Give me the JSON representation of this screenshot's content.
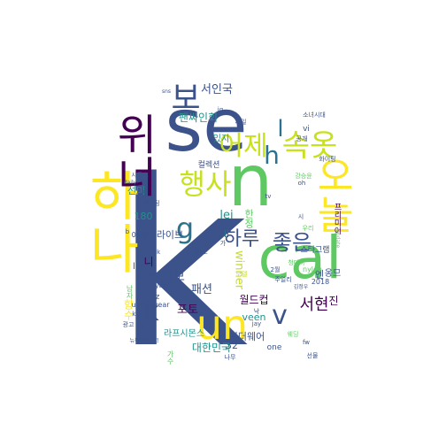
{
  "words": [
    {
      "text": "k",
      "size": 260,
      "color": "#3b528b",
      "orientation": "horizontal"
    },
    {
      "text": "se",
      "size": 82,
      "color": "#3b528b",
      "orientation": "horizontal"
    },
    {
      "text": "n",
      "size": 80,
      "color": "#5ec962",
      "orientation": "horizontal"
    },
    {
      "text": "cal",
      "size": 66,
      "color": "#5ec962",
      "orientation": "horizontal"
    },
    {
      "text": "하나",
      "size": 60,
      "color": "#fde725",
      "orientation": "vertical"
    },
    {
      "text": "위너",
      "size": 48,
      "color": "#440154",
      "orientation": "vertical"
    },
    {
      "text": "오늘",
      "size": 44,
      "color": "#fde725",
      "orientation": "vertical"
    },
    {
      "text": "un",
      "size": 46,
      "color": "#fde725",
      "orientation": "horizontal"
    },
    {
      "text": "보",
      "size": 36,
      "color": "#3b528b",
      "orientation": "horizontal"
    },
    {
      "text": "속옷",
      "size": 34,
      "color": "#c8e020",
      "orientation": "horizontal"
    },
    {
      "text": "행사",
      "size": 32,
      "color": "#c8e020",
      "orientation": "horizontal"
    },
    {
      "text": "어제",
      "size": 30,
      "color": "#c8e020",
      "orientation": "horizontal"
    },
    {
      "text": "g",
      "size": 32,
      "color": "#2c728e",
      "orientation": "horizontal"
    },
    {
      "text": "v",
      "size": 30,
      "color": "#3b528b",
      "orientation": "horizontal"
    },
    {
      "text": "h",
      "size": 28,
      "color": "#2c728e",
      "orientation": "horizontal"
    },
    {
      "text": "k",
      "size": 30,
      "color": "#3b528b",
      "orientation": "horizontal"
    },
    {
      "text": "하루",
      "size": 22,
      "color": "#3b528b",
      "orientation": "horizontal"
    },
    {
      "text": "좋은",
      "size": 24,
      "color": "#3b528b",
      "orientation": "horizontal"
    },
    {
      "text": "서현",
      "size": 18,
      "color": "#440154",
      "orientation": "horizontal"
    },
    {
      "text": "l",
      "size": 26,
      "color": "#2c728e",
      "orientation": "horizontal"
    },
    {
      "text": "서인국",
      "size": 13,
      "color": "#3b528b",
      "orientation": "horizontal"
    },
    {
      "text": "팬싸인회",
      "size": 12,
      "color": "#21918c",
      "orientation": "horizontal"
    },
    {
      "text": "화보",
      "size": 14,
      "color": "#3b528b",
      "orientation": "horizontal"
    },
    {
      "text": "패션",
      "size": 13,
      "color": "#3b528b",
      "orientation": "horizontal"
    },
    {
      "text": "포토",
      "size": 13,
      "color": "#440154",
      "orientation": "horizontal"
    },
    {
      "text": "대한민국",
      "size": 12,
      "color": "#21918c",
      "orientation": "horizontal"
    },
    {
      "text": "winner",
      "size": 13,
      "color": "#c8e020",
      "orientation": "vertical"
    },
    {
      "text": "월드컵",
      "size": 12,
      "color": "#440154",
      "orientation": "horizontal"
    },
    {
      "text": "veen",
      "size": 11,
      "color": "#21918c",
      "orientation": "horizontal"
    },
    {
      "text": "언더웨어",
      "size": 11,
      "color": "#3b528b",
      "orientation": "horizontal"
    },
    {
      "text": "라프시몬스",
      "size": 10,
      "color": "#21918c",
      "orientation": "horizontal"
    },
    {
      "text": "라이브",
      "size": 11,
      "color": "#3b528b",
      "orientation": "horizontal"
    },
    {
      "text": "한정",
      "size": 11,
      "color": "#5ec962",
      "orientation": "vertical"
    },
    {
      "text": "엔",
      "size": 11,
      "color": "#3b528b",
      "orientation": "horizontal"
    },
    {
      "text": "옹므",
      "size": 10,
      "color": "#3b528b",
      "orientation": "horizontal"
    },
    {
      "text": "진",
      "size": 12,
      "color": "#440154",
      "orientation": "horizontal"
    },
    {
      "text": "향수",
      "size": 12,
      "color": "#fde725",
      "orientation": "vertical"
    },
    {
      "text": "32",
      "size": 11,
      "color": "#3b528b",
      "orientation": "horizontal"
    },
    {
      "text": "one",
      "size": 9,
      "color": "#3b528b",
      "orientation": "horizontal"
    },
    {
      "text": "lei",
      "size": 13,
      "color": "#21918c",
      "orientation": "horizontal"
    },
    {
      "text": "li",
      "size": 11,
      "color": "#2c728e",
      "orientation": "horizontal"
    },
    {
      "text": "live",
      "size": 10,
      "color": "#3b528b",
      "orientation": "horizontal"
    },
    {
      "text": "stag",
      "size": 9,
      "color": "#3b528b",
      "orientation": "horizontal"
    },
    {
      "text": "180",
      "size": 11,
      "color": "#21918c",
      "orientation": "horizontal"
    },
    {
      "text": "w",
      "size": 10,
      "color": "#3b528b",
      "orientation": "horizontal"
    },
    {
      "text": "니",
      "size": 12,
      "color": "#440154",
      "orientation": "horizontal"
    },
    {
      "text": "선미",
      "size": 11,
      "color": "#21918c",
      "orientation": "horizontal"
    },
    {
      "text": "있지",
      "size": 10,
      "color": "#21918c",
      "orientation": "horizontal"
    },
    {
      "text": "컬렉션",
      "size": 9,
      "color": "#3b528b",
      "orientation": "horizontal"
    },
    {
      "text": "아레나",
      "size": 9,
      "color": "#3b528b",
      "orientation": "horizontal"
    },
    {
      "text": "스타그램",
      "size": 9,
      "color": "#3b528b",
      "orientation": "horizontal"
    },
    {
      "text": "프리미어",
      "size": 9,
      "color": "#440154",
      "orientation": "vertical"
    },
    {
      "text": "nylon",
      "size": 8,
      "color": "#5ec962",
      "orientation": "horizontal"
    },
    {
      "text": "2018",
      "size": 8,
      "color": "#3b528b",
      "orientation": "horizontal"
    },
    {
      "text": "underwear",
      "size": 8,
      "color": "#3b528b",
      "orientation": "horizontal"
    },
    {
      "text": "korea",
      "size": 7,
      "color": "#3b528b",
      "orientation": "horizontal"
    },
    {
      "text": "시몬스",
      "size": 7,
      "color": "#3b528b",
      "orientation": "horizontal"
    },
    {
      "text": "세일",
      "size": 7,
      "color": "#3b528b",
      "orientation": "horizontal"
    },
    {
      "text": "강승윤",
      "size": 7,
      "color": "#5ec962",
      "orientation": "horizontal"
    },
    {
      "text": "소녀시대",
      "size": 7,
      "color": "#3b528b",
      "orientation": "horizontal"
    },
    {
      "text": "주얼리",
      "size": 7,
      "color": "#3b528b",
      "orientation": "horizontal"
    },
    {
      "text": "시계",
      "size": 7,
      "color": "#3b528b",
      "orientation": "horizontal"
    },
    {
      "text": "tv",
      "size": 7,
      "color": "#3b528b",
      "orientation": "horizontal"
    },
    {
      "text": "uk",
      "size": 7,
      "color": "#3b528b",
      "orientation": "horizontal"
    },
    {
      "text": "oh",
      "size": 7,
      "color": "#3b528b",
      "orientation": "horizontal"
    },
    {
      "text": "jay",
      "size": 7,
      "color": "#3b528b",
      "orientation": "horizontal"
    },
    {
      "text": "fw",
      "size": 7,
      "color": "#3b528b",
      "orientation": "horizontal"
    },
    {
      "text": "2월호",
      "size": 7,
      "color": "#3b528b",
      "orientation": "horizontal"
    },
    {
      "text": "웨딩",
      "size": 7,
      "color": "#5ec962",
      "orientation": "horizontal"
    },
    {
      "text": "청다하",
      "size": 7,
      "color": "#5ec962",
      "orientation": "horizontal"
    },
    {
      "text": "daily",
      "size": 6,
      "color": "#3b528b",
      "orientation": "horizontal"
    },
    {
      "text": "p",
      "size": 7,
      "color": "#3b528b",
      "orientation": "horizontal"
    },
    {
      "text": "b",
      "size": 7,
      "color": "#3b528b",
      "orientation": "horizontal"
    },
    {
      "text": "yam",
      "size": 7,
      "color": "#3b528b",
      "orientation": "horizontal"
    },
    {
      "text": "선물",
      "size": 7,
      "color": "#3b528b",
      "orientation": "horizontal"
    },
    {
      "text": "팬미팅",
      "size": 7,
      "color": "#3b528b",
      "orientation": "horizontal"
    },
    {
      "text": "vi",
      "size": 9,
      "color": "#3b528b",
      "orientation": "horizontal"
    },
    {
      "text": "모델",
      "size": 7,
      "color": "#c8e020",
      "orientation": "horizontal"
    },
    {
      "text": "낙",
      "size": 7,
      "color": "#3b528b",
      "orientation": "horizontal"
    },
    {
      "text": "update",
      "size": 6,
      "color": "#5ec962",
      "orientation": "vertical"
    },
    {
      "text": "김정우",
      "size": 6,
      "color": "#3b528b",
      "orientation": "horizontal"
    },
    {
      "text": "우리",
      "size": 7,
      "color": "#5ec962",
      "orientation": "horizontal"
    },
    {
      "text": "화이팅",
      "size": 7,
      "color": "#3b528b",
      "orientation": "horizontal"
    },
    {
      "text": "sns",
      "size": 6,
      "color": "#3b528b",
      "orientation": "horizontal"
    },
    {
      "text": "ig",
      "size": 7,
      "color": "#3b528b",
      "orientation": "horizontal"
    },
    {
      "text": "z",
      "size": 9,
      "color": "#3b528b",
      "orientation": "horizontal"
    },
    {
      "text": "공개",
      "size": 7,
      "color": "#3b528b",
      "orientation": "horizontal"
    },
    {
      "text": "광고",
      "size": 7,
      "color": "#3b528b",
      "orientation": "horizontal"
    },
    {
      "text": "나무",
      "size": 7,
      "color": "#3b528b",
      "orientation": "horizontal"
    },
    {
      "text": "뉴욕패션위크",
      "size": 6,
      "color": "#3b528b",
      "orientation": "horizontal"
    },
    {
      "text": "남자",
      "size": 8,
      "color": "#5ec962",
      "orientation": "vertical"
    },
    {
      "text": "가수",
      "size": 8,
      "color": "#5ec962",
      "orientation": "vertical"
    },
    {
      "text": "시",
      "size": 7,
      "color": "#3b528b",
      "orientation": "horizontal"
    },
    {
      "text": "가",
      "size": 7,
      "color": "#3b528b",
      "orientation": "horizontal"
    },
    {
      "text": "2월",
      "size": 7,
      "color": "#3b528b",
      "orientation": "horizontal"
    }
  ]
}
